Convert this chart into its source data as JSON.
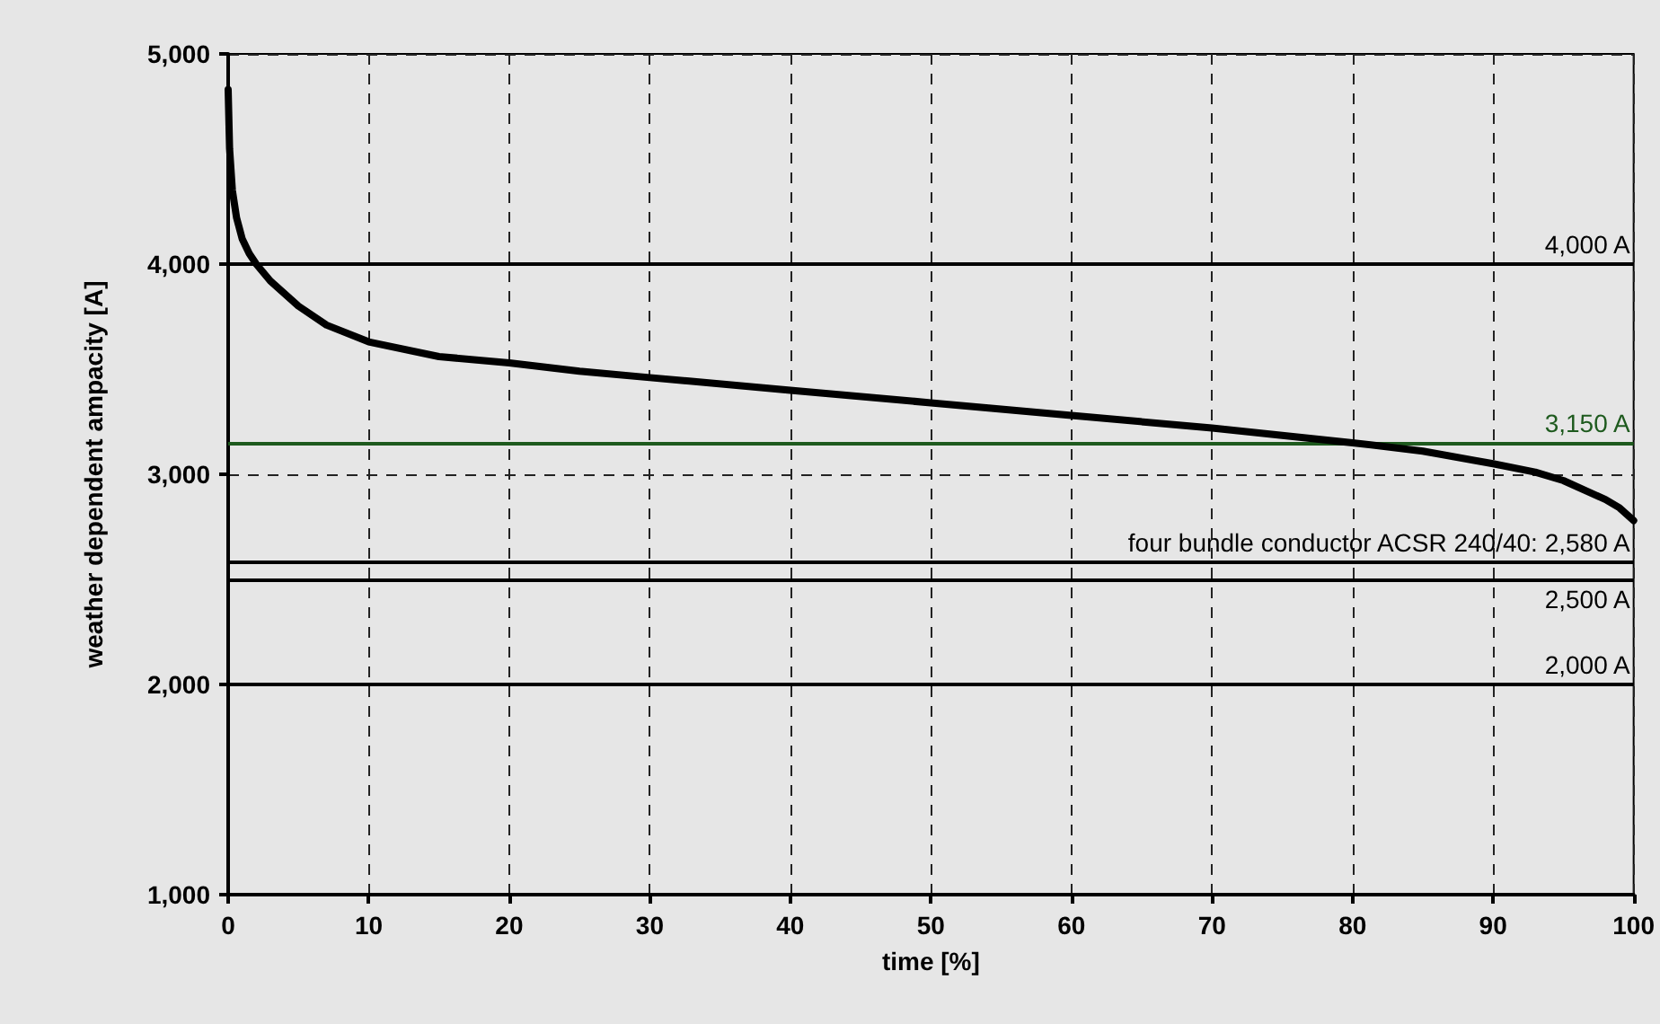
{
  "chart_data": {
    "type": "line",
    "xlabel": "time [%]",
    "ylabel": "weather dependent ampacity [A]",
    "x": [
      0,
      0.1,
      0.3,
      0.6,
      1,
      1.5,
      2,
      3,
      4,
      5,
      7,
      10,
      15,
      20,
      25,
      30,
      40,
      50,
      60,
      70,
      80,
      85,
      90,
      93,
      95,
      97,
      98,
      99,
      100
    ],
    "series": [
      {
        "color": "#000000",
        "values": [
          4830,
          4550,
          4350,
          4220,
          4120,
          4050,
          4000,
          3920,
          3860,
          3800,
          3710,
          3630,
          3560,
          3530,
          3490,
          3460,
          3400,
          3340,
          3280,
          3220,
          3150,
          3110,
          3050,
          3010,
          2970,
          2910,
          2880,
          2840,
          2780
        ]
      }
    ],
    "xlim": [
      0,
      100
    ],
    "xticks": [
      0,
      10,
      20,
      30,
      40,
      50,
      60,
      70,
      80,
      90,
      100
    ],
    "ylim": [
      1000,
      5000
    ],
    "yticks": [
      {
        "value": 1000,
        "label": "1,000"
      },
      {
        "value": 2000,
        "label": "2,000"
      },
      {
        "value": 3000,
        "label": "3,000"
      },
      {
        "value": 4000,
        "label": "4,000"
      },
      {
        "value": 5000,
        "label": "5,000"
      }
    ],
    "ref_lines": [
      {
        "axis": "y",
        "value": 4000,
        "label": "4,000 A",
        "color": "#000000"
      },
      {
        "axis": "y",
        "value": 3150,
        "label": "3,150 A",
        "color": "#1e5a1e"
      },
      {
        "axis": "y",
        "value": 2580,
        "label": "four bundle conductor ACSR 240/40: 2,580 A",
        "color": "#000000"
      },
      {
        "axis": "y",
        "value": 2500,
        "label": "2,500 A",
        "color": "#000000"
      },
      {
        "axis": "y",
        "value": 2000,
        "label": "2,000 A",
        "color": "#000000"
      }
    ],
    "grid": true,
    "marker": "none",
    "line_style": "solid"
  }
}
